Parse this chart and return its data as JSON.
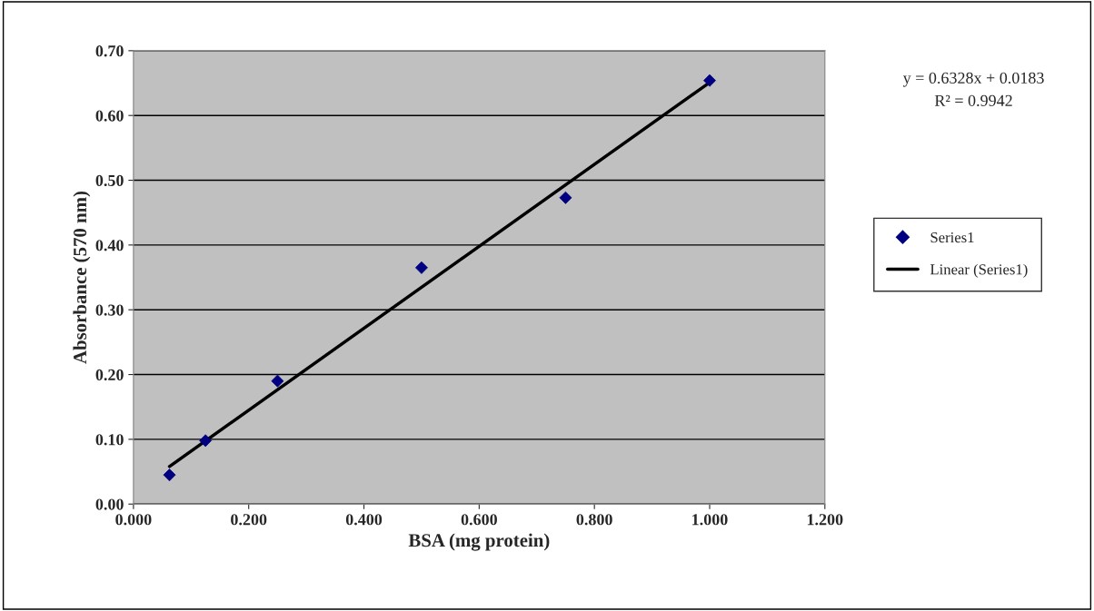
{
  "chart_data": {
    "type": "scatter",
    "xlabel": "BSA (mg protein)",
    "ylabel": "Absorbance (570 nm)",
    "annotations": [
      "y = 0.6328x + 0.0183",
      "R² = 0.9942"
    ],
    "series": [
      {
        "name": "Series1",
        "color": "#000080",
        "marker": "diamond",
        "x": [
          0.0625,
          0.125,
          0.25,
          0.5,
          0.75,
          1.0
        ],
        "values": [
          0.045,
          0.098,
          0.19,
          0.365,
          0.473,
          0.654
        ]
      },
      {
        "name": "Linear (Series1)",
        "type": "line",
        "color": "#000000",
        "line_style": "solid",
        "x": [
          0.0625,
          1.0
        ],
        "values": [
          0.058,
          0.651
        ]
      }
    ],
    "xlim": [
      0,
      1.2
    ],
    "xticks": [
      {
        "value": 0,
        "label": "0.000"
      },
      {
        "value": 0.2,
        "label": "0.200"
      },
      {
        "value": 0.4,
        "label": "0.400"
      },
      {
        "value": 0.6,
        "label": "0.600"
      },
      {
        "value": 0.8,
        "label": "0.800"
      },
      {
        "value": 1.0,
        "label": "1.000"
      },
      {
        "value": 1.2,
        "label": "1.200"
      }
    ],
    "ylim": [
      0,
      0.7
    ],
    "yticks": [
      {
        "value": 0,
        "label": "0.00"
      },
      {
        "value": 0.1,
        "label": "0.10"
      },
      {
        "value": 0.2,
        "label": "0.20"
      },
      {
        "value": 0.3,
        "label": "0.30"
      },
      {
        "value": 0.4,
        "label": "0.40"
      },
      {
        "value": 0.5,
        "label": "0.50"
      },
      {
        "value": 0.6,
        "label": "0.60"
      },
      {
        "value": 0.7,
        "label": "0.70"
      }
    ],
    "grid": "y",
    "legend": "right"
  }
}
